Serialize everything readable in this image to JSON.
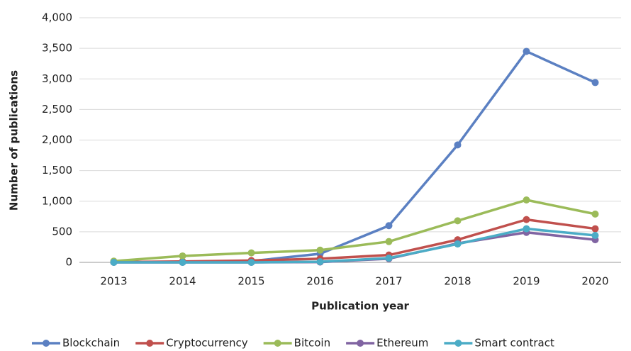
{
  "chart_data": {
    "type": "line",
    "x_label": "Publication year",
    "y_label": "Number of publications",
    "categories": [
      "2013",
      "2014",
      "2015",
      "2016",
      "2017",
      "2018",
      "2019",
      "2020"
    ],
    "series": [
      {
        "name": "Blockchain",
        "color": "#5b80c2",
        "values": [
          5,
          10,
          20,
          140,
          600,
          1920,
          3450,
          2940
        ]
      },
      {
        "name": "Cryptocurrency",
        "color": "#c0504d",
        "values": [
          5,
          15,
          30,
          60,
          120,
          370,
          700,
          550
        ]
      },
      {
        "name": "Bitcoin",
        "color": "#9bbb59",
        "values": [
          20,
          105,
          155,
          200,
          340,
          680,
          1020,
          790
        ]
      },
      {
        "name": "Ethereum",
        "color": "#8064a2",
        "values": [
          0,
          0,
          0,
          5,
          60,
          310,
          490,
          370
        ]
      },
      {
        "name": "Smart contract",
        "color": "#4bacc6",
        "values": [
          0,
          0,
          0,
          10,
          70,
          300,
          550,
          440
        ]
      }
    ],
    "ylim": [
      0,
      4000
    ],
    "yticks": [
      0,
      500,
      {
        "value": 1000,
        "label": "1,000"
      },
      {
        "value": 1500,
        "label": "1,500"
      },
      {
        "value": 2000,
        "label": "2,000"
      },
      {
        "value": 2500,
        "label": "2,500"
      },
      {
        "value": 3000,
        "label": "3,000"
      },
      {
        "value": 3500,
        "label": "3,500"
      },
      {
        "value": 4000,
        "label": "4,000"
      }
    ],
    "grid": true,
    "legend": "bottom"
  }
}
